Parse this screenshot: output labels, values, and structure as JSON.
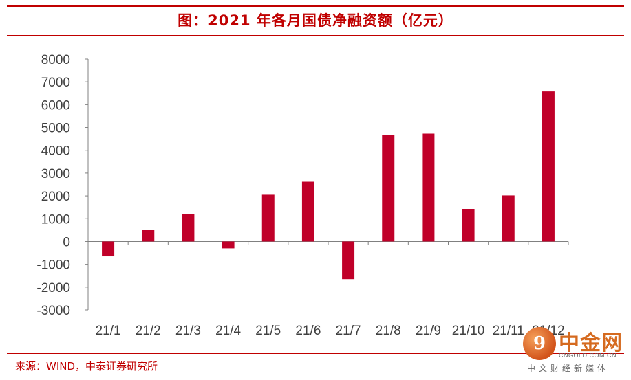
{
  "title": "图：2021 年各月国债净融资额（亿元）",
  "source": "来源：WIND，中泰证券研究所",
  "logo": {
    "glyph": "9",
    "name": "中金网",
    "domain": "CNGOLD.COM.CN",
    "subtitle": "中文财经新媒体"
  },
  "colors": {
    "accent": "#c00000",
    "bar": "#c00029"
  },
  "chart_data": {
    "type": "bar",
    "title": "图：2021 年各月国债净融资额（亿元）",
    "xlabel": "",
    "ylabel": "",
    "categories": [
      "21/1",
      "21/2",
      "21/3",
      "21/4",
      "21/5",
      "21/6",
      "21/7",
      "21/8",
      "21/9",
      "21/10",
      "21/11",
      "21/12"
    ],
    "values": [
      -650,
      500,
      1200,
      -300,
      2050,
      2620,
      -1650,
      4680,
      4730,
      1430,
      2020,
      6580
    ],
    "yticks": [
      8000,
      7000,
      6000,
      5000,
      4000,
      3000,
      2000,
      1000,
      0,
      -1000,
      -2000,
      -3000
    ],
    "ylim": [
      -3000,
      8000
    ],
    "grid": false,
    "legend": "none"
  }
}
